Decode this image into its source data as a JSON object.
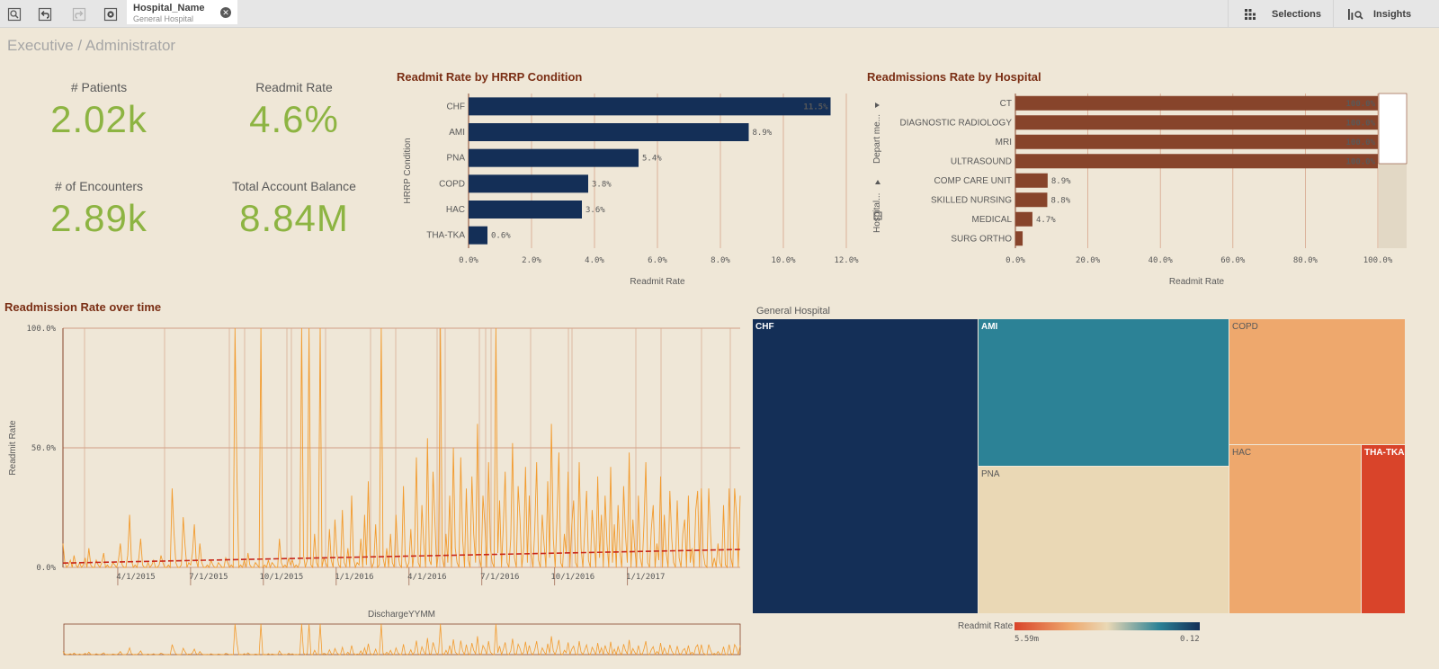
{
  "toolbar": {
    "selection_field": "Hospital_Name",
    "selection_value": "General Hospital",
    "selections_label": "Selections",
    "insights_label": "Insights"
  },
  "sheet_title": "Executive / Administrator",
  "kpis": {
    "patients_label": "# Patients",
    "patients_value": "2.02k",
    "readmit_label": "Readmit Rate",
    "readmit_value": "4.6%",
    "encounters_label": "# of Encounters",
    "encounters_value": "2.89k",
    "balance_label": "Total Account Balance",
    "balance_value": "8.84M"
  },
  "colors": {
    "navy": "#142f57",
    "brown": "#87442b",
    "orange": "#f29b2e",
    "trend": "#c8281a",
    "kpi_green": "#8db442"
  },
  "chart_data": [
    {
      "type": "bar",
      "title": "Readmit Rate by HRRP Condition",
      "orientation": "horizontal",
      "categories": [
        "CHF",
        "AMI",
        "PNA",
        "COPD",
        "HAC",
        "THA-TKA"
      ],
      "values": [
        11.5,
        8.9,
        5.4,
        3.8,
        3.6,
        0.6
      ],
      "value_labels": [
        "11.5%",
        "8.9%",
        "5.4%",
        "3.8%",
        "3.6%",
        "0.6%"
      ],
      "xlabel": "Readmit Rate",
      "ylabel": "HRRP Condition",
      "xlim": [
        0,
        12
      ],
      "xticks": [
        "0.0%",
        "2.0%",
        "4.0%",
        "6.0%",
        "8.0%",
        "10.0%",
        "12.0%"
      ],
      "color": "#142f57"
    },
    {
      "type": "bar",
      "title": "Readmissions Rate by Hospital",
      "orientation": "horizontal",
      "categories": [
        "CT",
        "DIAGNOSTIC RADIOLOGY",
        "MRI",
        "ULTRASOUND",
        "COMP CARE UNIT",
        "SKILLED NURSING",
        "MEDICAL",
        "SURG ORTHO"
      ],
      "values": [
        100,
        100,
        100,
        100,
        8.9,
        8.8,
        4.7,
        2.0
      ],
      "value_labels": [
        "100.0%",
        "100.0%",
        "100.0%",
        "100.0%",
        "8.9%",
        "8.8%",
        "4.7%",
        ""
      ],
      "xlabel": "Readmit Rate",
      "xlim": [
        0,
        100
      ],
      "xticks": [
        "0.0%",
        "20.0%",
        "40.0%",
        "60.0%",
        "80.0%",
        "100.0%"
      ],
      "dimension_labels": [
        "Depart me...",
        "Hospital..."
      ],
      "color": "#87442b"
    },
    {
      "type": "line",
      "title": "Readmission Rate over time",
      "xlabel": "DischargeYYMM",
      "ylabel": "Readmit Rate",
      "ylim": [
        0,
        100
      ],
      "yticks": [
        "0.0%",
        "50.0%",
        "100.0%"
      ],
      "xticks": [
        "4/1/2015",
        "7/1/2015",
        "10/1/2015",
        "1/1/2016",
        "4/1/2016",
        "7/1/2016",
        "10/1/2016",
        "1/1/2017"
      ],
      "x_range": [
        "2015-01",
        "2017-06"
      ],
      "series": [
        {
          "values": [
            10,
            2,
            0,
            1,
            3,
            0,
            5,
            1,
            0,
            2,
            0,
            1,
            4,
            0,
            8,
            1,
            0,
            0,
            3,
            1,
            0,
            2,
            6,
            0,
            1,
            0,
            0,
            2,
            1,
            0,
            3,
            10,
            1,
            0,
            0,
            5,
            22,
            3,
            0,
            1,
            0,
            4,
            12,
            1,
            0,
            0,
            2,
            0,
            1,
            3,
            0,
            0,
            1,
            5,
            2,
            0,
            0,
            1,
            0,
            33,
            15,
            2,
            0,
            0,
            1,
            21,
            9,
            0,
            2,
            1,
            6,
            18,
            3,
            0,
            10,
            2,
            0,
            0,
            1,
            0,
            3,
            1,
            0,
            0,
            2,
            1,
            0,
            0,
            4,
            2,
            0,
            1,
            0,
            100,
            40,
            0,
            1,
            0,
            3,
            0,
            6,
            1,
            0,
            0,
            2,
            1,
            0,
            100,
            0,
            1,
            0,
            3,
            0,
            2,
            1,
            0,
            0,
            12,
            2,
            0,
            1,
            0,
            4,
            1,
            3,
            0,
            1,
            0,
            2,
            100,
            5,
            0,
            3,
            100,
            1,
            0,
            14,
            2,
            0,
            100,
            0,
            4,
            2,
            0,
            16,
            3,
            0,
            20,
            6,
            1,
            0,
            24,
            2,
            0,
            8,
            0,
            30,
            4,
            0,
            2,
            1,
            12,
            0,
            22,
            1,
            36,
            5,
            0,
            2,
            18,
            0,
            1,
            100,
            4,
            0,
            8,
            0,
            14,
            2,
            0,
            22,
            6,
            1,
            0,
            34,
            3,
            0,
            2,
            16,
            0,
            8,
            46,
            2,
            0,
            26,
            10,
            0,
            54,
            3,
            1,
            40,
            20,
            0,
            6,
            100,
            4,
            0,
            14,
            2,
            30,
            0,
            50,
            8,
            2,
            0,
            46,
            12,
            0,
            33,
            3,
            0,
            38,
            14,
            2,
            60,
            4,
            0,
            30,
            18,
            0,
            44,
            8,
            2,
            0,
            100,
            6,
            28,
            0,
            18,
            40,
            2,
            0,
            12,
            52,
            4,
            0,
            34,
            20,
            0,
            8,
            42,
            2,
            30,
            6,
            0,
            16,
            44,
            3,
            0,
            22,
            10,
            0,
            36,
            4,
            60,
            12,
            0,
            20,
            48,
            2,
            0,
            14,
            6,
            40,
            0,
            18,
            28,
            2,
            0,
            44,
            8,
            0,
            16,
            32,
            3,
            0,
            24,
            12,
            0,
            38,
            4,
            22,
            0,
            30,
            10,
            0,
            42,
            2,
            18,
            0,
            26,
            6,
            0,
            34,
            14,
            2,
            48,
            0,
            20,
            8,
            0,
            30,
            4,
            0,
            18,
            44,
            2,
            0,
            16,
            26,
            0,
            10,
            3,
            38,
            0,
            22,
            6,
            0,
            32,
            12,
            2,
            0,
            28,
            4,
            0,
            14,
            20,
            0,
            30,
            2,
            8,
            0,
            24,
            32,
            0,
            33,
            6,
            1,
            0,
            33,
            14,
            0,
            4,
            0,
            10,
            2,
            0,
            26,
            1,
            0,
            33,
            4,
            0,
            33,
            22,
            0,
            30
          ],
          "color": "#f29b2e"
        }
      ],
      "trend": {
        "from": 1.8,
        "to": 7.5,
        "style": "dashed",
        "color": "#c8281a"
      }
    },
    {
      "type": "heatmap",
      "title": "General Hospital",
      "subtype": "treemap",
      "categories": [
        "CHF",
        "AMI",
        "PNA",
        "COPD",
        "HAC",
        "THA-TKA"
      ],
      "colors": [
        "#142f57",
        "#2c8296",
        "#ead8b5",
        "#eea86d",
        "#eea86d",
        "#d9442a"
      ],
      "legend_label": "Readmit Rate",
      "legend_min": "5.59m",
      "legend_max": "0.12"
    }
  ]
}
